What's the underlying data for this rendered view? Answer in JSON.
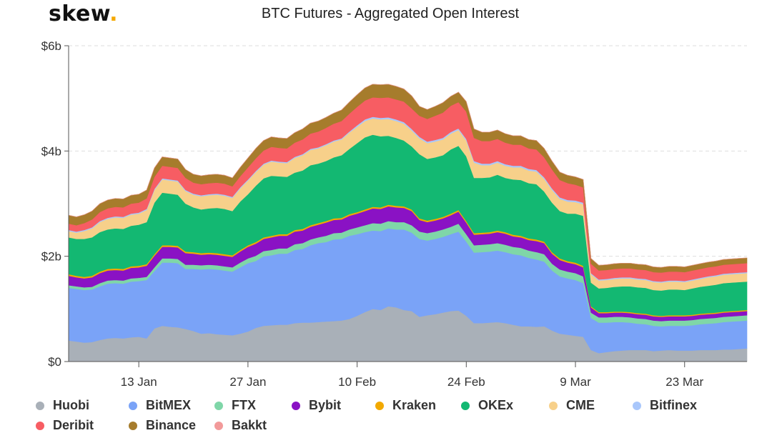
{
  "header": {
    "logo_text": "skew",
    "logo_dot": ".",
    "title": "BTC Futures - Aggregated Open Interest"
  },
  "colors": {
    "logo_dot": "#f5a800",
    "grid": "#dddddd",
    "axis": "#555555"
  },
  "chart_data": {
    "type": "area",
    "stacked": true,
    "title": "BTC Futures - Aggregated Open Interest",
    "xlabel": "",
    "ylabel": "",
    "ylim": [
      0,
      6
    ],
    "y_unit": "billion USD",
    "y_ticks": [
      {
        "value": 0,
        "label": "$0"
      },
      {
        "value": 2,
        "label": "$2b"
      },
      {
        "value": 4,
        "label": "$4b"
      },
      {
        "value": 6,
        "label": "$6b"
      }
    ],
    "x_ticks": [
      {
        "index": 9,
        "label": "13 Jan"
      },
      {
        "index": 23,
        "label": "27 Jan"
      },
      {
        "index": 37,
        "label": "10 Feb"
      },
      {
        "index": 51,
        "label": "24 Feb"
      },
      {
        "index": 65,
        "label": "9 Mar"
      },
      {
        "index": 79,
        "label": "23 Mar"
      }
    ],
    "x_start_date": "4 Jan",
    "x_step": "1 day",
    "grid": true,
    "legend_position": "bottom",
    "series": [
      {
        "name": "Huobi",
        "color": "#a9b0b8",
        "values": [
          0.4,
          0.38,
          0.36,
          0.37,
          0.41,
          0.44,
          0.45,
          0.44,
          0.46,
          0.47,
          0.44,
          0.63,
          0.68,
          0.66,
          0.65,
          0.62,
          0.58,
          0.53,
          0.54,
          0.52,
          0.51,
          0.5,
          0.53,
          0.57,
          0.64,
          0.68,
          0.69,
          0.7,
          0.7,
          0.73,
          0.74,
          0.74,
          0.75,
          0.76,
          0.77,
          0.78,
          0.81,
          0.87,
          0.94,
          1.0,
          0.98,
          1.05,
          1.03,
          0.98,
          0.96,
          0.85,
          0.88,
          0.9,
          0.93,
          0.96,
          0.97,
          0.87,
          0.73,
          0.73,
          0.74,
          0.75,
          0.73,
          0.7,
          0.67,
          0.67,
          0.66,
          0.67,
          0.59,
          0.53,
          0.51,
          0.49,
          0.47,
          0.22,
          0.16,
          0.18,
          0.2,
          0.21,
          0.22,
          0.22,
          0.22,
          0.2,
          0.21,
          0.22,
          0.21,
          0.21,
          0.21,
          0.22,
          0.22,
          0.22,
          0.23,
          0.23,
          0.24,
          0.25
        ]
      },
      {
        "name": "BitMEX",
        "color": "#7aa3f7",
        "values": [
          1.0,
          1.0,
          1.0,
          1.0,
          1.02,
          1.04,
          1.04,
          1.04,
          1.06,
          1.06,
          1.11,
          1.09,
          1.2,
          1.22,
          1.22,
          1.14,
          1.18,
          1.22,
          1.22,
          1.23,
          1.22,
          1.21,
          1.26,
          1.3,
          1.27,
          1.32,
          1.33,
          1.35,
          1.35,
          1.39,
          1.4,
          1.47,
          1.5,
          1.51,
          1.55,
          1.55,
          1.58,
          1.55,
          1.52,
          1.49,
          1.5,
          1.48,
          1.48,
          1.53,
          1.49,
          1.48,
          1.42,
          1.43,
          1.44,
          1.46,
          1.5,
          1.41,
          1.34,
          1.35,
          1.35,
          1.36,
          1.35,
          1.34,
          1.35,
          1.3,
          1.28,
          1.23,
          1.14,
          1.09,
          1.07,
          1.06,
          1.02,
          0.61,
          0.58,
          0.56,
          0.55,
          0.54,
          0.52,
          0.5,
          0.49,
          0.48,
          0.46,
          0.46,
          0.47,
          0.47,
          0.48,
          0.49,
          0.5,
          0.51,
          0.52,
          0.53,
          0.53,
          0.53
        ]
      },
      {
        "name": "FTX",
        "color": "#7fd6a8",
        "values": [
          0.05,
          0.05,
          0.05,
          0.05,
          0.06,
          0.06,
          0.06,
          0.06,
          0.06,
          0.06,
          0.06,
          0.07,
          0.08,
          0.08,
          0.08,
          0.08,
          0.08,
          0.08,
          0.08,
          0.08,
          0.08,
          0.08,
          0.09,
          0.09,
          0.1,
          0.1,
          0.1,
          0.1,
          0.1,
          0.11,
          0.11,
          0.11,
          0.11,
          0.12,
          0.12,
          0.12,
          0.12,
          0.13,
          0.13,
          0.14,
          0.14,
          0.14,
          0.14,
          0.14,
          0.14,
          0.14,
          0.14,
          0.14,
          0.14,
          0.14,
          0.15,
          0.14,
          0.14,
          0.14,
          0.14,
          0.14,
          0.14,
          0.14,
          0.14,
          0.14,
          0.14,
          0.14,
          0.13,
          0.13,
          0.13,
          0.13,
          0.13,
          0.1,
          0.1,
          0.1,
          0.1,
          0.1,
          0.1,
          0.1,
          0.1,
          0.1,
          0.1,
          0.1,
          0.1,
          0.1,
          0.1,
          0.1,
          0.1,
          0.1,
          0.1,
          0.1,
          0.1,
          0.1
        ]
      },
      {
        "name": "Bybit",
        "color": "#8a12c4",
        "values": [
          0.18,
          0.17,
          0.17,
          0.18,
          0.19,
          0.19,
          0.19,
          0.19,
          0.2,
          0.2,
          0.21,
          0.22,
          0.22,
          0.22,
          0.22,
          0.22,
          0.21,
          0.2,
          0.2,
          0.2,
          0.2,
          0.2,
          0.21,
          0.22,
          0.23,
          0.23,
          0.24,
          0.24,
          0.24,
          0.24,
          0.24,
          0.24,
          0.24,
          0.25,
          0.25,
          0.25,
          0.26,
          0.26,
          0.27,
          0.28,
          0.28,
          0.28,
          0.28,
          0.27,
          0.27,
          0.22,
          0.21,
          0.21,
          0.21,
          0.22,
          0.23,
          0.22,
          0.2,
          0.2,
          0.2,
          0.21,
          0.21,
          0.2,
          0.2,
          0.2,
          0.21,
          0.21,
          0.19,
          0.18,
          0.17,
          0.17,
          0.17,
          0.1,
          0.08,
          0.08,
          0.08,
          0.08,
          0.08,
          0.08,
          0.08,
          0.08,
          0.08,
          0.08,
          0.08,
          0.08,
          0.08,
          0.08,
          0.08,
          0.08,
          0.08,
          0.08,
          0.08,
          0.08
        ]
      },
      {
        "name": "Kraken",
        "color": "#f2a900",
        "values": [
          0.03,
          0.03,
          0.03,
          0.03,
          0.03,
          0.03,
          0.03,
          0.03,
          0.03,
          0.03,
          0.03,
          0.03,
          0.03,
          0.03,
          0.03,
          0.03,
          0.03,
          0.03,
          0.03,
          0.03,
          0.03,
          0.03,
          0.03,
          0.03,
          0.03,
          0.03,
          0.03,
          0.03,
          0.03,
          0.03,
          0.03,
          0.03,
          0.03,
          0.03,
          0.03,
          0.03,
          0.03,
          0.03,
          0.03,
          0.03,
          0.03,
          0.03,
          0.03,
          0.03,
          0.03,
          0.03,
          0.03,
          0.03,
          0.03,
          0.03,
          0.03,
          0.03,
          0.03,
          0.03,
          0.03,
          0.03,
          0.03,
          0.03,
          0.03,
          0.03,
          0.03,
          0.03,
          0.03,
          0.03,
          0.03,
          0.03,
          0.03,
          0.02,
          0.02,
          0.02,
          0.02,
          0.02,
          0.02,
          0.02,
          0.02,
          0.02,
          0.02,
          0.02,
          0.02,
          0.02,
          0.02,
          0.02,
          0.02,
          0.02,
          0.02,
          0.02,
          0.02,
          0.02
        ]
      },
      {
        "name": "OKEx",
        "color": "#13b872",
        "values": [
          0.7,
          0.7,
          0.72,
          0.73,
          0.75,
          0.75,
          0.76,
          0.76,
          0.77,
          0.78,
          0.8,
          0.98,
          1.0,
          0.98,
          0.97,
          0.91,
          0.85,
          0.83,
          0.84,
          0.86,
          0.86,
          0.84,
          0.92,
          0.97,
          1.07,
          1.12,
          1.14,
          1.1,
          1.09,
          1.09,
          1.11,
          1.14,
          1.13,
          1.14,
          1.16,
          1.19,
          1.24,
          1.31,
          1.37,
          1.37,
          1.35,
          1.31,
          1.29,
          1.25,
          1.2,
          1.22,
          1.17,
          1.17,
          1.17,
          1.22,
          1.22,
          1.23,
          1.05,
          1.04,
          1.04,
          1.06,
          1.03,
          1.05,
          1.06,
          1.05,
          1.05,
          0.95,
          0.94,
          0.9,
          0.9,
          0.93,
          0.95,
          0.45,
          0.45,
          0.46,
          0.47,
          0.48,
          0.49,
          0.49,
          0.49,
          0.48,
          0.48,
          0.49,
          0.49,
          0.48,
          0.5,
          0.51,
          0.52,
          0.53,
          0.54,
          0.54,
          0.54,
          0.54
        ]
      },
      {
        "name": "CME",
        "color": "#f7d08a",
        "values": [
          0.12,
          0.12,
          0.15,
          0.17,
          0.19,
          0.2,
          0.21,
          0.21,
          0.21,
          0.21,
          0.23,
          0.24,
          0.25,
          0.25,
          0.25,
          0.24,
          0.24,
          0.25,
          0.25,
          0.25,
          0.25,
          0.25,
          0.25,
          0.26,
          0.26,
          0.26,
          0.27,
          0.26,
          0.26,
          0.28,
          0.29,
          0.29,
          0.29,
          0.3,
          0.3,
          0.3,
          0.31,
          0.31,
          0.31,
          0.31,
          0.32,
          0.32,
          0.32,
          0.32,
          0.3,
          0.3,
          0.3,
          0.3,
          0.3,
          0.3,
          0.3,
          0.3,
          0.29,
          0.24,
          0.23,
          0.23,
          0.23,
          0.23,
          0.24,
          0.24,
          0.24,
          0.24,
          0.24,
          0.23,
          0.23,
          0.22,
          0.22,
          0.16,
          0.15,
          0.15,
          0.15,
          0.15,
          0.15,
          0.15,
          0.15,
          0.15,
          0.15,
          0.15,
          0.15,
          0.15,
          0.15,
          0.15,
          0.16,
          0.16,
          0.16,
          0.16,
          0.16,
          0.16
        ]
      },
      {
        "name": "Bitfinex",
        "color": "#a9c7fb",
        "values": [
          0.02,
          0.02,
          0.02,
          0.02,
          0.02,
          0.02,
          0.02,
          0.02,
          0.02,
          0.02,
          0.02,
          0.02,
          0.02,
          0.02,
          0.02,
          0.02,
          0.02,
          0.02,
          0.02,
          0.02,
          0.02,
          0.02,
          0.02,
          0.02,
          0.02,
          0.02,
          0.02,
          0.02,
          0.02,
          0.02,
          0.02,
          0.02,
          0.02,
          0.02,
          0.02,
          0.02,
          0.02,
          0.03,
          0.03,
          0.03,
          0.03,
          0.03,
          0.03,
          0.03,
          0.03,
          0.03,
          0.03,
          0.03,
          0.03,
          0.03,
          0.03,
          0.03,
          0.03,
          0.03,
          0.03,
          0.03,
          0.03,
          0.03,
          0.03,
          0.03,
          0.03,
          0.03,
          0.03,
          0.03,
          0.03,
          0.03,
          0.03,
          0.02,
          0.02,
          0.02,
          0.02,
          0.02,
          0.02,
          0.02,
          0.02,
          0.02,
          0.02,
          0.02,
          0.02,
          0.02,
          0.02,
          0.02,
          0.02,
          0.02,
          0.02,
          0.02,
          0.02,
          0.02
        ]
      },
      {
        "name": "Deribit",
        "color": "#f75d63",
        "values": [
          0.12,
          0.12,
          0.13,
          0.15,
          0.17,
          0.18,
          0.18,
          0.18,
          0.19,
          0.19,
          0.2,
          0.23,
          0.24,
          0.24,
          0.24,
          0.23,
          0.21,
          0.21,
          0.21,
          0.21,
          0.21,
          0.2,
          0.21,
          0.23,
          0.24,
          0.25,
          0.26,
          0.26,
          0.26,
          0.27,
          0.28,
          0.29,
          0.3,
          0.31,
          0.32,
          0.33,
          0.34,
          0.35,
          0.36,
          0.37,
          0.38,
          0.38,
          0.38,
          0.39,
          0.39,
          0.4,
          0.43,
          0.46,
          0.48,
          0.5,
          0.5,
          0.52,
          0.44,
          0.43,
          0.43,
          0.42,
          0.41,
          0.4,
          0.4,
          0.39,
          0.39,
          0.38,
          0.36,
          0.33,
          0.32,
          0.3,
          0.29,
          0.18,
          0.17,
          0.17,
          0.17,
          0.17,
          0.17,
          0.17,
          0.17,
          0.17,
          0.17,
          0.17,
          0.17,
          0.17,
          0.17,
          0.17,
          0.17,
          0.17,
          0.17,
          0.17,
          0.17,
          0.17
        ]
      },
      {
        "name": "Binance",
        "color": "#a67c2c",
        "values": [
          0.16,
          0.16,
          0.16,
          0.16,
          0.16,
          0.16,
          0.16,
          0.16,
          0.16,
          0.16,
          0.16,
          0.17,
          0.17,
          0.17,
          0.17,
          0.16,
          0.16,
          0.16,
          0.16,
          0.16,
          0.16,
          0.16,
          0.17,
          0.18,
          0.19,
          0.19,
          0.19,
          0.19,
          0.19,
          0.19,
          0.2,
          0.2,
          0.2,
          0.2,
          0.2,
          0.21,
          0.22,
          0.23,
          0.24,
          0.25,
          0.25,
          0.25,
          0.25,
          0.24,
          0.24,
          0.18,
          0.18,
          0.18,
          0.19,
          0.18,
          0.19,
          0.19,
          0.17,
          0.17,
          0.17,
          0.17,
          0.17,
          0.17,
          0.17,
          0.17,
          0.17,
          0.17,
          0.16,
          0.15,
          0.15,
          0.15,
          0.15,
          0.1,
          0.1,
          0.1,
          0.1,
          0.1,
          0.1,
          0.1,
          0.1,
          0.1,
          0.1,
          0.1,
          0.1,
          0.1,
          0.1,
          0.1,
          0.1,
          0.1,
          0.1,
          0.1,
          0.1,
          0.1
        ]
      },
      {
        "name": "Bakkt",
        "color": "#f29a9a",
        "values": [
          0.0,
          0.0,
          0.0,
          0.0,
          0.0,
          0.0,
          0.0,
          0.0,
          0.0,
          0.0,
          0.0,
          0.0,
          0.0,
          0.0,
          0.0,
          0.0,
          0.0,
          0.0,
          0.0,
          0.0,
          0.0,
          0.0,
          0.0,
          0.0,
          0.0,
          0.0,
          0.0,
          0.0,
          0.0,
          0.0,
          0.0,
          0.0,
          0.0,
          0.0,
          0.0,
          0.0,
          0.0,
          0.0,
          0.0,
          0.0,
          0.0,
          0.0,
          0.0,
          0.0,
          0.0,
          0.0,
          0.0,
          0.0,
          0.0,
          0.0,
          0.0,
          0.0,
          0.0,
          0.0,
          0.0,
          0.0,
          0.0,
          0.0,
          0.0,
          0.0,
          0.0,
          0.0,
          0.0,
          0.0,
          0.0,
          0.0,
          0.0,
          0.0,
          0.0,
          0.0,
          0.0,
          0.0,
          0.0,
          0.0,
          0.0,
          0.0,
          0.0,
          0.0,
          0.0,
          0.0,
          0.0,
          0.0,
          0.0,
          0.0,
          0.0,
          0.0,
          0.0,
          0.0
        ]
      }
    ]
  }
}
